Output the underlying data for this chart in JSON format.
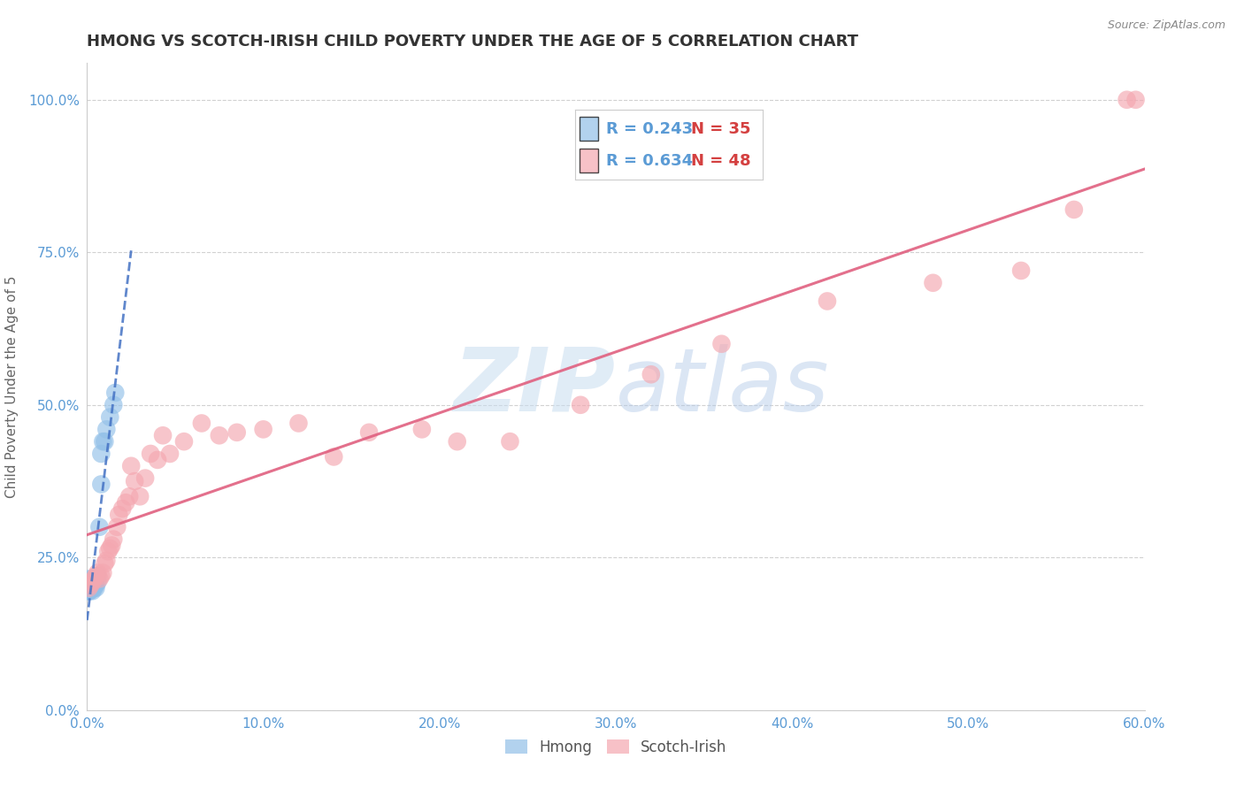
{
  "title": "HMONG VS SCOTCH-IRISH CHILD POVERTY UNDER THE AGE OF 5 CORRELATION CHART",
  "source": "Source: ZipAtlas.com",
  "ylabel": "Child Poverty Under the Age of 5",
  "hmong_color": "#92c0e8",
  "scotch_color": "#f4a7b0",
  "hmong_line_color": "#4472c4",
  "scotch_line_color": "#e06080",
  "hmong_R": 0.243,
  "hmong_N": 35,
  "scotch_R": 0.634,
  "scotch_N": 48,
  "xmin": 0.0,
  "xmax": 0.6,
  "ymin": 0.0,
  "ymax": 1.06,
  "hmong_x": [
    0.0005,
    0.0008,
    0.001,
    0.001,
    0.001,
    0.0012,
    0.0012,
    0.0015,
    0.0015,
    0.002,
    0.002,
    0.002,
    0.0025,
    0.003,
    0.003,
    0.003,
    0.003,
    0.003,
    0.004,
    0.004,
    0.004,
    0.005,
    0.005,
    0.005,
    0.006,
    0.006,
    0.007,
    0.008,
    0.008,
    0.009,
    0.01,
    0.011,
    0.013,
    0.015,
    0.016
  ],
  "hmong_y": [
    0.195,
    0.2,
    0.205,
    0.21,
    0.215,
    0.195,
    0.2,
    0.195,
    0.205,
    0.2,
    0.205,
    0.21,
    0.2,
    0.195,
    0.2,
    0.205,
    0.21,
    0.215,
    0.2,
    0.205,
    0.21,
    0.2,
    0.205,
    0.215,
    0.21,
    0.22,
    0.3,
    0.37,
    0.42,
    0.44,
    0.44,
    0.46,
    0.48,
    0.5,
    0.52
  ],
  "scotch_x": [
    0.001,
    0.002,
    0.003,
    0.004,
    0.005,
    0.006,
    0.007,
    0.008,
    0.009,
    0.01,
    0.011,
    0.012,
    0.013,
    0.014,
    0.015,
    0.017,
    0.018,
    0.02,
    0.022,
    0.024,
    0.025,
    0.027,
    0.03,
    0.033,
    0.036,
    0.04,
    0.043,
    0.047,
    0.055,
    0.065,
    0.075,
    0.085,
    0.1,
    0.12,
    0.14,
    0.16,
    0.19,
    0.21,
    0.24,
    0.28,
    0.32,
    0.36,
    0.42,
    0.48,
    0.53,
    0.56,
    0.59,
    0.595
  ],
  "scotch_y": [
    0.2,
    0.205,
    0.21,
    0.215,
    0.22,
    0.225,
    0.215,
    0.22,
    0.225,
    0.24,
    0.245,
    0.26,
    0.265,
    0.27,
    0.28,
    0.3,
    0.32,
    0.33,
    0.34,
    0.35,
    0.4,
    0.375,
    0.35,
    0.38,
    0.42,
    0.41,
    0.45,
    0.42,
    0.44,
    0.47,
    0.45,
    0.455,
    0.46,
    0.47,
    0.415,
    0.455,
    0.46,
    0.44,
    0.44,
    0.5,
    0.55,
    0.6,
    0.67,
    0.7,
    0.72,
    0.82,
    1.0,
    1.0
  ],
  "background_color": "#ffffff",
  "grid_color": "#cccccc",
  "tick_color": "#5b9bd5",
  "title_fontsize": 13,
  "label_fontsize": 11,
  "axis_tick_fontsize": 11
}
